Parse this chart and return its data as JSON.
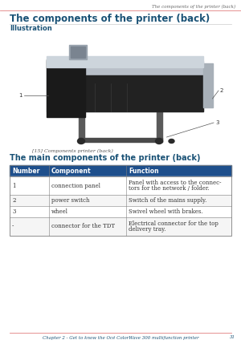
{
  "page_title": "The components of the printer (back)",
  "section1_title": "Illustration",
  "caption": "[15] Components printer (back)",
  "section2_title": "The main components of the printer (back)",
  "table_header": [
    "Number",
    "Component",
    "Function"
  ],
  "table_rows": [
    [
      "1",
      "connection panel",
      "Panel with access to the connec-\ntors for the network / folder."
    ],
    [
      "2",
      "power switch",
      "Switch of the mains supply."
    ],
    [
      "3",
      "wheel",
      "Swivel wheel with brakes."
    ],
    [
      "-",
      "connector for the TDT",
      "Electrical connector for the top\ndelivery tray."
    ]
  ],
  "header_bg": "#1e4f8c",
  "header_fg": "#ffffff",
  "title_color": "#1a5276",
  "section_color": "#1a5276",
  "border_color": "#808080",
  "page_bg": "#ffffff",
  "rule_color": "#e08080",
  "footer_text": "Chapter 2 - Get to know the Océ ColorWave 300 multifunction printer",
  "footer_page": "31",
  "top_header_right": "The components of the printer (back)"
}
